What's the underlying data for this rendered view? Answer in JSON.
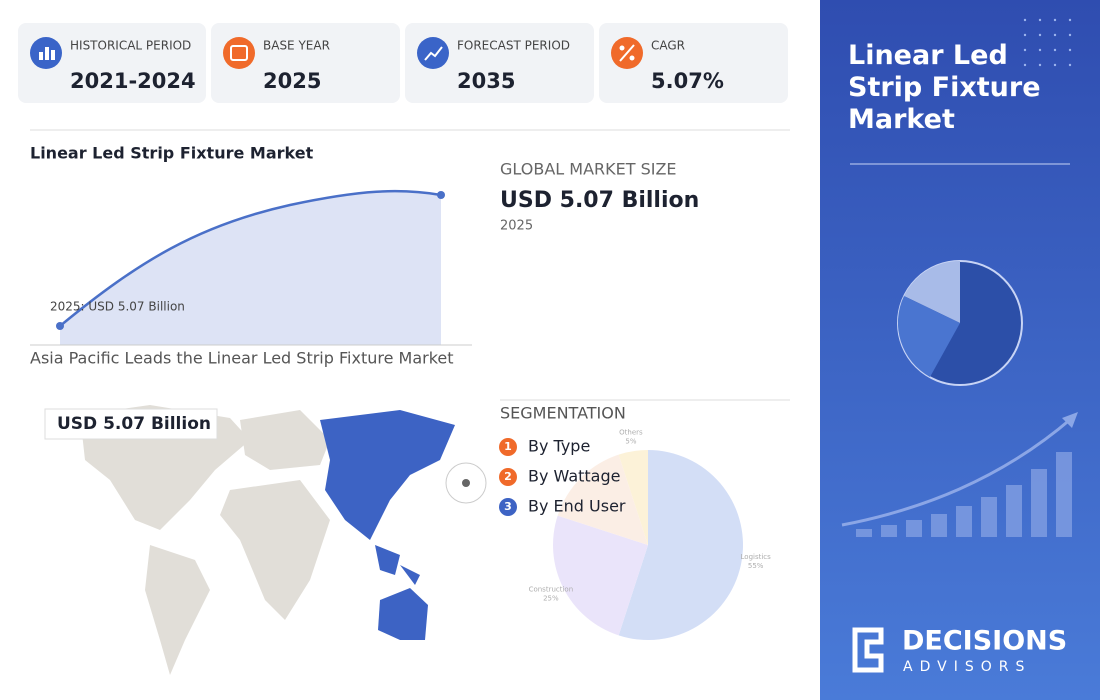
{
  "stats": [
    {
      "label": "HISTORICAL PERIOD",
      "value": "2021-2024"
    },
    {
      "label": "BASE YEAR",
      "value": "2025"
    },
    {
      "label": "FORECAST PERIOD",
      "value": "2035"
    },
    {
      "label": "CAGR",
      "value": "5.07%"
    }
  ],
  "trend": {
    "title": "Linear Led Strip Fixture Market",
    "annotation": "2025: USD 5.07 Billion"
  },
  "market_size": {
    "heading": "GLOBAL MARKET SIZE",
    "value": "USD 5.07 Billion",
    "year": "2025"
  },
  "region": {
    "heading": "Asia Pacific Leads the Linear Led Strip Fixture Market",
    "map_label": "USD 5.07 Billion"
  },
  "segmentation": {
    "heading": "SEGMENTATION",
    "items": [
      {
        "number": "1",
        "label": "By Type"
      },
      {
        "number": "2",
        "label": "By Wattage"
      },
      {
        "number": "3",
        "label": "By End User"
      }
    ],
    "pie": {
      "categories": [
        "Logistics",
        "Construction",
        null,
        "Others"
      ],
      "values": [
        55,
        25,
        15,
        5
      ],
      "value_labels": [
        "55%",
        "25%",
        null,
        "5%"
      ],
      "colors": [
        "#c9d6f5",
        "#e6def9",
        "#fbeadf",
        "#fcefcf"
      ]
    }
  },
  "panel": {
    "title": "Linear Led Strip Fixture Market",
    "brand": "DECISIONS",
    "tagline": "ADVISORS"
  }
}
